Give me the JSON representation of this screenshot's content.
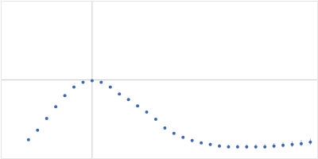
{
  "chart_data": {
    "type": "scatter",
    "color": "#3a66b5",
    "marker": "circle",
    "x": [
      0.3,
      0.4,
      0.5,
      0.6,
      0.7,
      0.8,
      0.9,
      1.0,
      1.1,
      1.2,
      1.3,
      1.4,
      1.5,
      1.6,
      1.7,
      1.8,
      1.9,
      2.0,
      2.1,
      2.2,
      2.3,
      2.4,
      2.5,
      2.6,
      2.7,
      2.8,
      2.9,
      3.0,
      3.1,
      3.2,
      3.3,
      3.4
    ],
    "values": [
      0.24,
      0.36,
      0.51,
      0.66,
      0.8,
      0.91,
      0.97,
      0.99,
      0.97,
      0.91,
      0.82,
      0.75,
      0.67,
      0.59,
      0.5,
      0.39,
      0.32,
      0.27,
      0.23,
      0.2,
      0.18,
      0.16,
      0.15,
      0.15,
      0.15,
      0.15,
      0.15,
      0.16,
      0.17,
      0.18,
      0.19,
      0.21
    ],
    "errors": [
      0.005,
      0.005,
      0.005,
      0.005,
      0.005,
      0.005,
      0.006,
      0.006,
      0.006,
      0.007,
      0.007,
      0.008,
      0.008,
      0.009,
      0.01,
      0.011,
      0.012,
      0.013,
      0.014,
      0.016,
      0.018,
      0.02,
      0.022,
      0.024,
      0.026,
      0.028,
      0.03,
      0.032,
      0.034,
      0.036,
      0.038,
      0.04
    ],
    "xlim": [
      0,
      3.48
    ],
    "ylim": [
      0,
      2
    ],
    "xticks": [
      1
    ],
    "yticks": [
      1
    ],
    "grid": true,
    "tick_labels": false
  }
}
